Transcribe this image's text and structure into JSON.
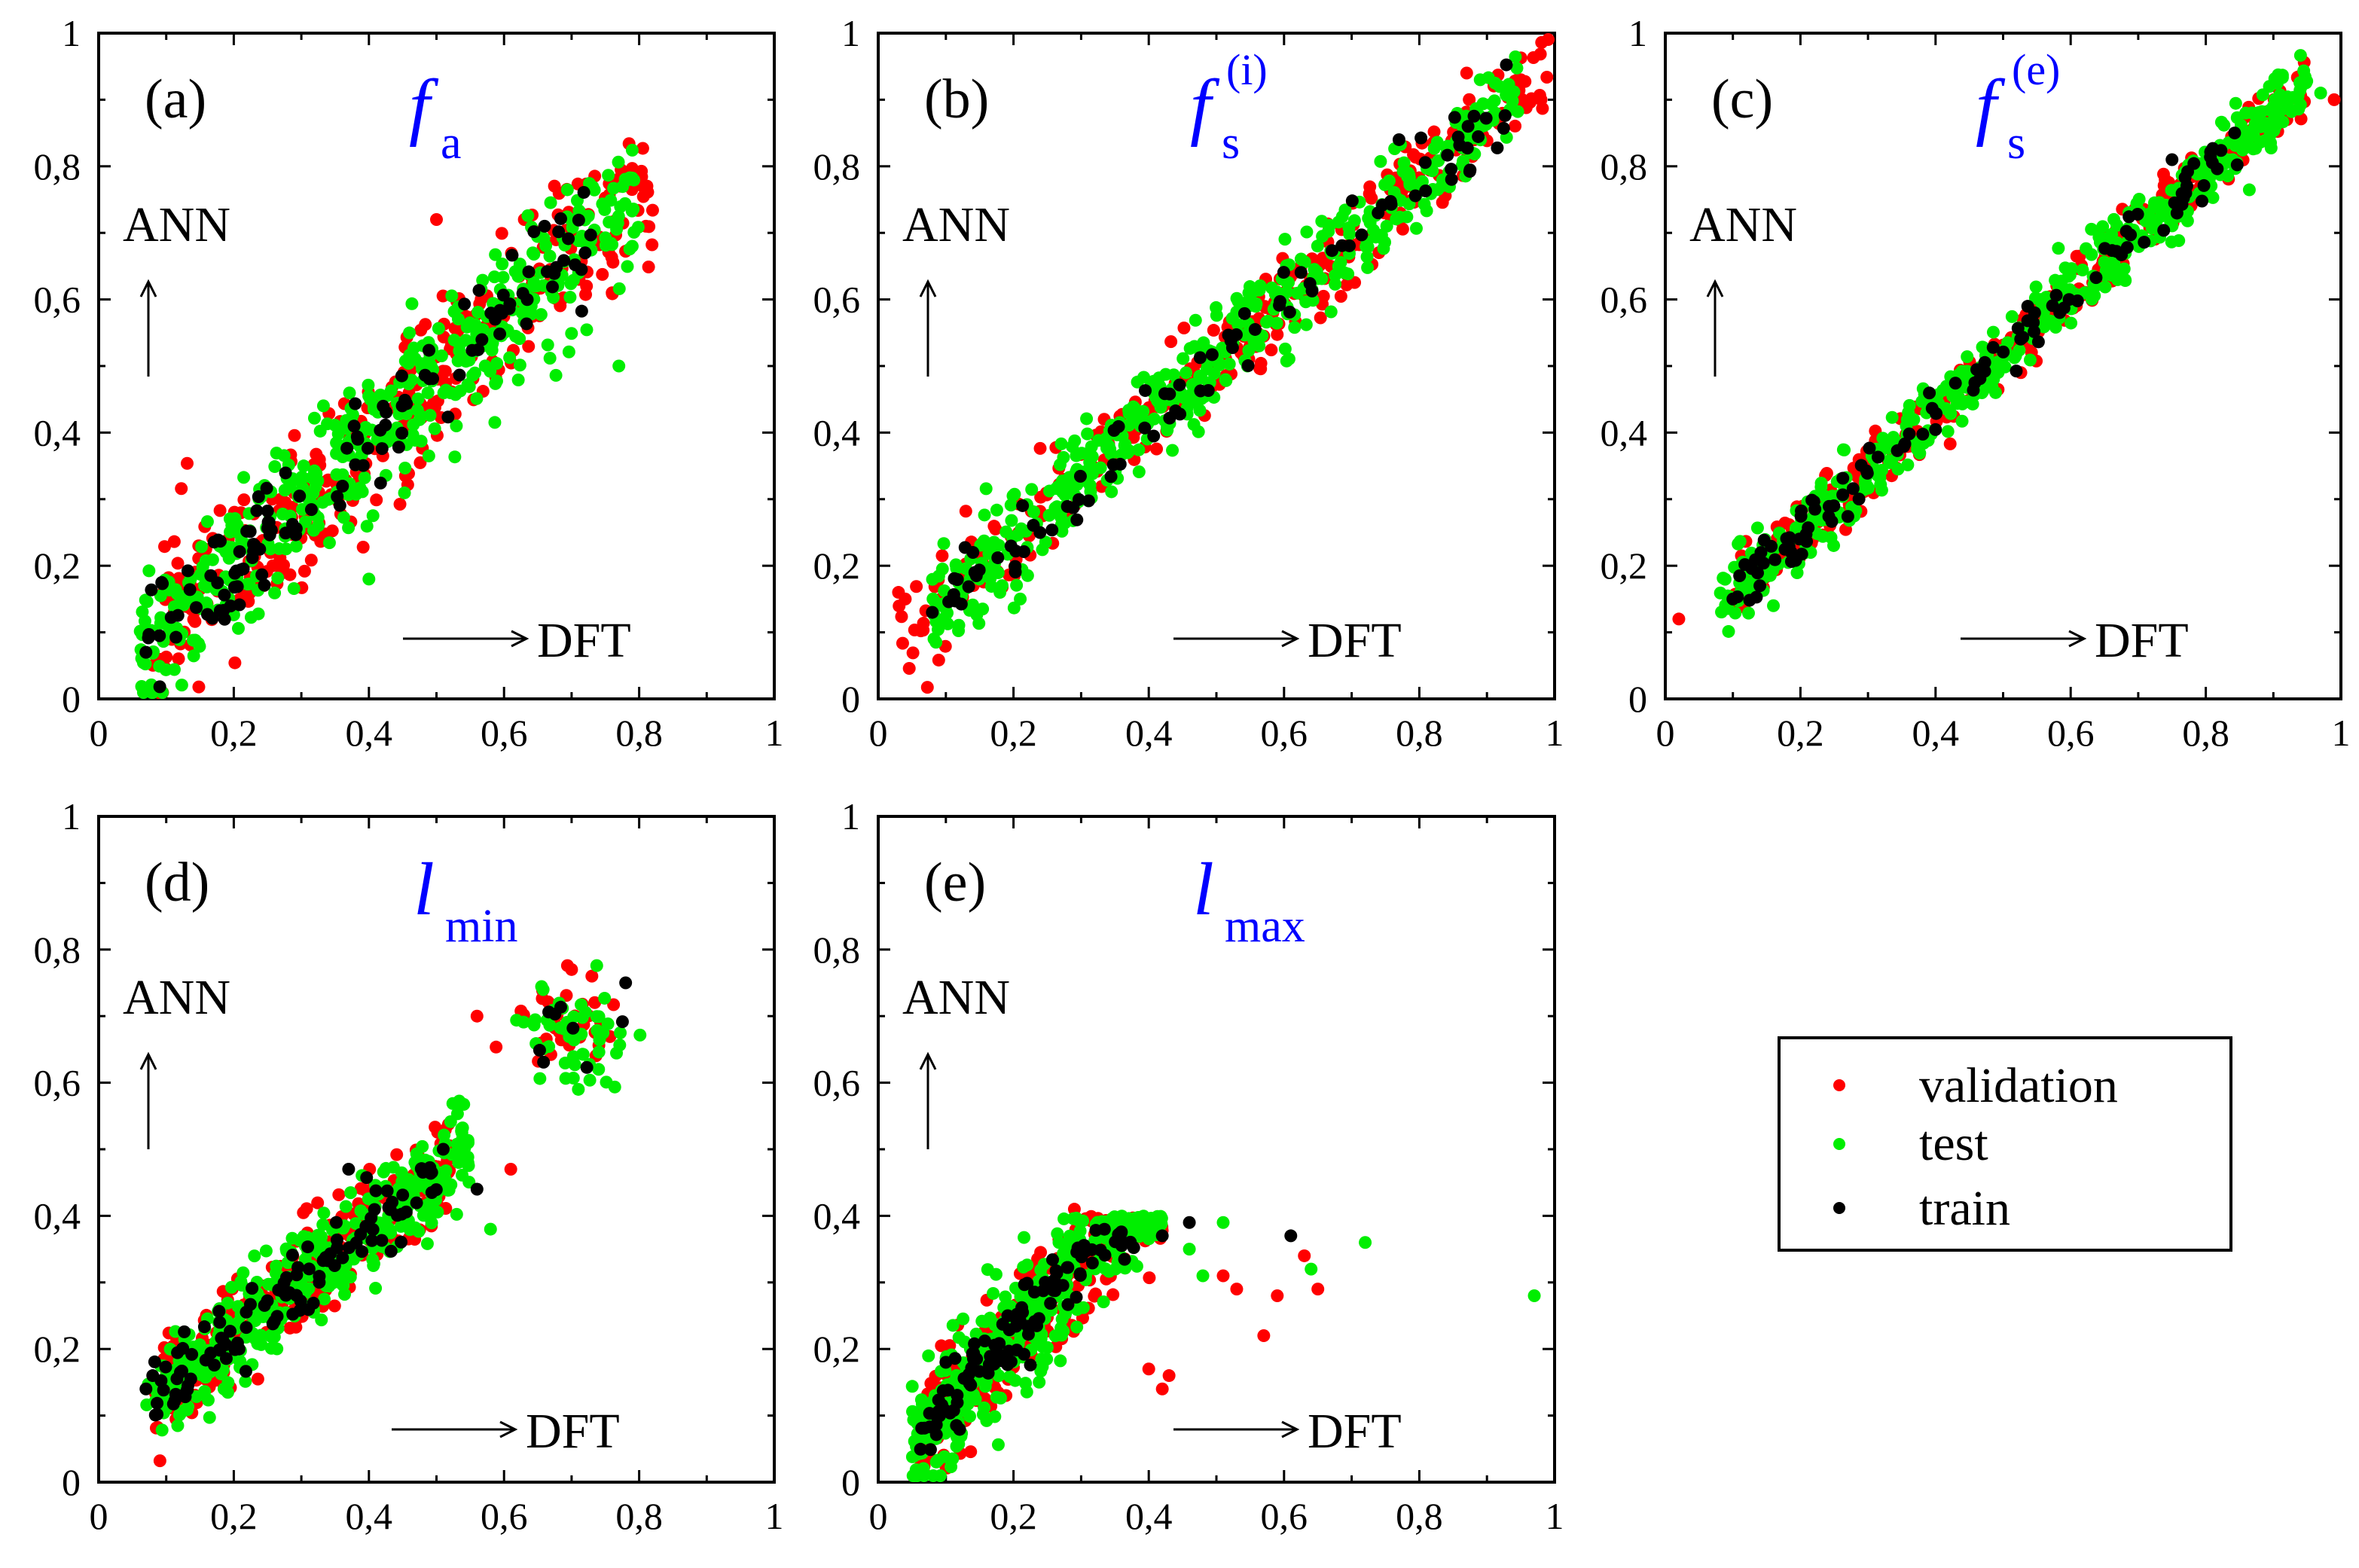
{
  "chart_data": [
    {
      "type": "scatter",
      "panel_label": "(a)",
      "quantity": {
        "main": "f",
        "sub": "a",
        "sup": ""
      },
      "xlabel": "DFT",
      "ylabel": "ANN",
      "xlim": [
        0,
        1
      ],
      "ylim": [
        0,
        1
      ],
      "xticks": [
        "0",
        "0,2",
        "0,4",
        "0,6",
        "0,8",
        "1"
      ],
      "yticks": [
        "0",
        "0,2",
        "0,4",
        "0,6",
        "0,8",
        "1"
      ],
      "series": [
        {
          "name": "validation",
          "color": "#ff0000",
          "cloud": {
            "seed": 11,
            "n": 340,
            "xmin": 0.08,
            "xmax": 0.82,
            "a": 0.02,
            "b": 0.92,
            "sd": 0.06
          },
          "points": [
            [
              0.81,
              0.71
            ],
            [
              0.63,
              0.72
            ],
            [
              0.5,
              0.72
            ],
            [
              0.76,
              0.61
            ]
          ]
        },
        {
          "name": "test",
          "color": "#00ee00",
          "cloud": {
            "seed": 12,
            "n": 460,
            "xmin": 0.06,
            "xmax": 0.8,
            "a": 0.02,
            "b": 0.92,
            "sd": 0.055
          },
          "points": [
            [
              0.4,
              0.18
            ],
            [
              0.08,
              0.1
            ],
            [
              0.77,
              0.5
            ]
          ]
        },
        {
          "name": "train",
          "color": "#000000",
          "cloud": {
            "seed": 13,
            "n": 120,
            "xmin": 0.07,
            "xmax": 0.73,
            "a": 0.02,
            "b": 0.92,
            "sd": 0.04
          },
          "points": [
            [
              0.07,
              0.07
            ],
            [
              0.66,
              0.71
            ],
            [
              0.72,
              0.67
            ]
          ]
        }
      ]
    },
    {
      "type": "scatter",
      "panel_label": "(b)",
      "quantity": {
        "main": "f",
        "sub": "s",
        "sup": "(i)"
      },
      "xlabel": "DFT",
      "ylabel": "ANN",
      "xlim": [
        0,
        1
      ],
      "ylim": [
        0,
        1
      ],
      "xticks": [
        "0",
        "0,2",
        "0,4",
        "0,6",
        "0,8",
        "1"
      ],
      "yticks": [
        "0",
        "0,2",
        "0,4",
        "0,6",
        "0,8",
        "1"
      ],
      "series": [
        {
          "name": "validation",
          "color": "#ff0000",
          "cloud": {
            "seed": 21,
            "n": 300,
            "xmin": 0.03,
            "xmax": 1.0,
            "a": 0.06,
            "b": 0.9,
            "sd": 0.035
          },
          "points": [
            [
              0.03,
              0.16
            ],
            [
              0.04,
              0.15
            ],
            [
              0.87,
              0.94
            ],
            [
              0.98,
              0.9
            ],
            [
              0.95,
              0.93
            ]
          ]
        },
        {
          "name": "test",
          "color": "#00ee00",
          "cloud": {
            "seed": 22,
            "n": 440,
            "xmin": 0.08,
            "xmax": 0.95,
            "a": 0.06,
            "b": 0.9,
            "sd": 0.035
          },
          "points": [
            [
              0.18,
              0.16
            ],
            [
              0.21,
              0.15
            ],
            [
              0.89,
              0.93
            ]
          ]
        },
        {
          "name": "train",
          "color": "#000000",
          "cloud": {
            "seed": 23,
            "n": 90,
            "xmin": 0.08,
            "xmax": 0.93,
            "a": 0.06,
            "b": 0.9,
            "sd": 0.025
          },
          "points": [
            [
              0.08,
              0.13
            ],
            [
              0.14,
              0.22
            ],
            [
              0.77,
              0.84
            ]
          ]
        }
      ]
    },
    {
      "type": "scatter",
      "panel_label": "(c)",
      "quantity": {
        "main": "f",
        "sub": "s",
        "sup": "(e)"
      },
      "xlabel": "DFT",
      "ylabel": "ANN",
      "xlim": [
        0,
        1
      ],
      "ylim": [
        0,
        1
      ],
      "xticks": [
        "0",
        "0,2",
        "0,4",
        "0,6",
        "0,8",
        "1"
      ],
      "yticks": [
        "0",
        "0,2",
        "0,4",
        "0,6",
        "0,8",
        "1"
      ],
      "series": [
        {
          "name": "validation",
          "color": "#ff0000",
          "cloud": {
            "seed": 31,
            "n": 300,
            "xmin": 0.1,
            "xmax": 0.95,
            "a": 0.07,
            "b": 0.9,
            "sd": 0.025
          },
          "points": [
            [
              0.02,
              0.12
            ],
            [
              0.99,
              0.9
            ],
            [
              0.92,
              0.87
            ]
          ]
        },
        {
          "name": "test",
          "color": "#00ee00",
          "cloud": {
            "seed": 32,
            "n": 460,
            "xmin": 0.08,
            "xmax": 0.95,
            "a": 0.07,
            "b": 0.9,
            "sd": 0.028
          },
          "points": [
            [
              0.97,
              0.91
            ],
            [
              0.16,
              0.14
            ],
            [
              0.9,
              0.89
            ]
          ]
        },
        {
          "name": "train",
          "color": "#000000",
          "cloud": {
            "seed": 33,
            "n": 110,
            "xmin": 0.1,
            "xmax": 0.85,
            "a": 0.07,
            "b": 0.9,
            "sd": 0.02
          },
          "points": [
            [
              0.1,
              0.15
            ],
            [
              0.14,
              0.17
            ],
            [
              0.75,
              0.81
            ]
          ]
        }
      ]
    },
    {
      "type": "scatter",
      "panel_label": "(d)",
      "quantity": {
        "main": "l",
        "sub": "min",
        "sup": ""
      },
      "xlabel": "DFT",
      "ylabel": "ANN",
      "xlim": [
        0,
        1
      ],
      "ylim": [
        0,
        1
      ],
      "xticks": [
        "0",
        "0,2",
        "0,4",
        "0,6",
        "0,8",
        "1"
      ],
      "yticks": [
        "0",
        "0,2",
        "0,4",
        "0,6",
        "0,8",
        "1"
      ],
      "series": [
        {
          "name": "validation",
          "color": "#ff0000",
          "cloud": {
            "seed": 41,
            "n": 300,
            "xmin": 0.08,
            "xmax": 0.52,
            "a": 0.06,
            "b": 0.8,
            "sd": 0.04
          },
          "cluster": {
            "seed": 44,
            "n": 35,
            "x": 0.69,
            "y": 0.68,
            "sx": 0.04,
            "sy": 0.04
          },
          "points": [
            [
              0.56,
              0.7
            ],
            [
              0.61,
              0.47
            ],
            [
              0.7,
              0.77
            ],
            [
              0.73,
              0.76
            ]
          ]
        },
        {
          "name": "test",
          "color": "#00ee00",
          "cloud": {
            "seed": 42,
            "n": 420,
            "xmin": 0.07,
            "xmax": 0.55,
            "a": 0.06,
            "b": 0.8,
            "sd": 0.04
          },
          "cluster": {
            "seed": 45,
            "n": 50,
            "x": 0.7,
            "y": 0.67,
            "sx": 0.04,
            "sy": 0.04
          },
          "points": [
            [
              0.58,
              0.38
            ],
            [
              0.71,
              0.59
            ],
            [
              0.74,
              0.62
            ]
          ]
        },
        {
          "name": "train",
          "color": "#000000",
          "cloud": {
            "seed": 43,
            "n": 110,
            "xmin": 0.07,
            "xmax": 0.5,
            "a": 0.06,
            "b": 0.8,
            "sd": 0.03
          },
          "cluster": {
            "seed": 46,
            "n": 8,
            "x": 0.7,
            "y": 0.68,
            "sx": 0.03,
            "sy": 0.03
          },
          "points": [
            [
              0.08,
              0.16
            ],
            [
              0.07,
              0.14
            ],
            [
              0.78,
              0.75
            ],
            [
              0.56,
              0.44
            ],
            [
              0.51,
              0.5
            ],
            [
              0.37,
              0.47
            ]
          ]
        }
      ]
    },
    {
      "type": "scatter",
      "panel_label": "(e)",
      "quantity": {
        "main": "l",
        "sub": "max",
        "sup": ""
      },
      "xlabel": "DFT",
      "ylabel": "ANN",
      "xlim": [
        0,
        1
      ],
      "ylim": [
        0,
        1
      ],
      "xticks": [
        "0",
        "0,2",
        "0,4",
        "0,6",
        "0,8",
        "1"
      ],
      "yticks": [
        "0",
        "0,2",
        "0,4",
        "0,6",
        "0,8",
        "1"
      ],
      "series": [
        {
          "name": "validation",
          "color": "#ff0000",
          "cloud": {
            "seed": 51,
            "n": 300,
            "xmin": 0.06,
            "xmax": 0.42,
            "a": 0.0,
            "b": 1.1,
            "sd": 0.045,
            "ymax": 0.4
          },
          "points": [
            [
              0.29,
              0.41
            ],
            [
              0.59,
              0.28
            ],
            [
              0.57,
              0.22
            ],
            [
              0.63,
              0.34
            ],
            [
              0.65,
              0.29
            ],
            [
              0.53,
              0.29
            ],
            [
              0.51,
              0.31
            ],
            [
              0.42,
              0.14
            ],
            [
              0.4,
              0.17
            ],
            [
              0.43,
              0.16
            ]
          ]
        },
        {
          "name": "test",
          "color": "#00ee00",
          "cloud": {
            "seed": 52,
            "n": 420,
            "xmin": 0.05,
            "xmax": 0.42,
            "a": 0.0,
            "b": 1.1,
            "sd": 0.045,
            "ymax": 0.4
          },
          "points": [
            [
              0.97,
              0.28
            ],
            [
              0.72,
              0.36
            ],
            [
              0.64,
              0.32
            ],
            [
              0.51,
              0.39
            ],
            [
              0.46,
              0.35
            ],
            [
              0.48,
              0.31
            ]
          ]
        },
        {
          "name": "train",
          "color": "#000000",
          "cloud": {
            "seed": 53,
            "n": 110,
            "xmin": 0.06,
            "xmax": 0.38,
            "a": 0.0,
            "b": 1.1,
            "sd": 0.03,
            "ymax": 0.38
          },
          "points": [
            [
              0.46,
              0.39
            ],
            [
              0.61,
              0.37
            ],
            [
              0.42,
              0.37
            ],
            [
              0.1,
              0.18
            ]
          ]
        }
      ]
    }
  ],
  "legend": {
    "items": [
      {
        "label": "validation",
        "color": "#ff0000"
      },
      {
        "label": "test",
        "color": "#00ee00"
      },
      {
        "label": "train",
        "color": "#000000"
      }
    ]
  }
}
